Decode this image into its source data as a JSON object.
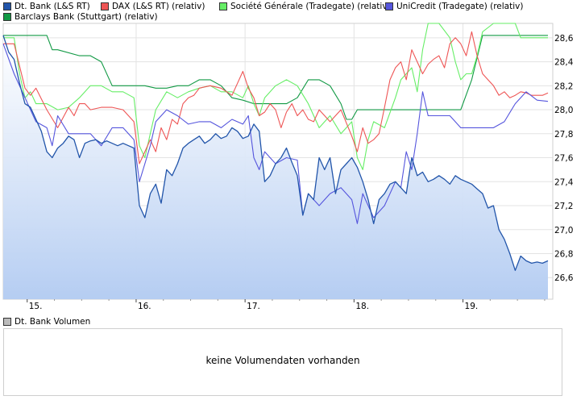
{
  "legend": [
    {
      "label": "Dt. Bank (L&S RT)",
      "color": "#2255aa"
    },
    {
      "label": "DAX (L&S RT) (relativ)",
      "color": "#ee5555"
    },
    {
      "label": "Société Générale (Tradegate) (relativ)",
      "color": "#66ee66"
    },
    {
      "label": "UniCredit (Tradegate) (relativ)",
      "color": "#5555dd"
    },
    {
      "label": "Barclays Bank (Stuttgart) (relativ)",
      "color": "#119944"
    }
  ],
  "volume": {
    "legend_label": "Dt. Bank Volumen",
    "legend_color": "#bbbbbb",
    "message": "keine Volumendaten vorhanden"
  },
  "chart_data": {
    "type": "line",
    "x_tick_labels": [
      "15.",
      "16.",
      "17.",
      "18.",
      "19."
    ],
    "y_tick_labels": [
      "26,6",
      "26,8",
      "27,0",
      "27,2",
      "27,4",
      "27,6",
      "27,8",
      "28,0",
      "28,2",
      "28,4",
      "28,6"
    ],
    "ylim": [
      26.42,
      28.72
    ],
    "xlim": [
      0,
      100
    ],
    "grid": true,
    "series": [
      {
        "name": "Dt. Bank (L&S RT)",
        "color": "#2255aa",
        "fill": true,
        "x": [
          0,
          1,
          2,
          3,
          4,
          5,
          6,
          7,
          8,
          9,
          10,
          11,
          12,
          13,
          14,
          15,
          16,
          17,
          18,
          19,
          20,
          21,
          22,
          23,
          24,
          25,
          26,
          27,
          28,
          29,
          30,
          31,
          32,
          33,
          34,
          35,
          36,
          37,
          38,
          39,
          40,
          41,
          42,
          43,
          44,
          45,
          46,
          47,
          48,
          49,
          50,
          51,
          52,
          53,
          54,
          55,
          56,
          57,
          58,
          59,
          60,
          61,
          62,
          63,
          64,
          65,
          66,
          67,
          68,
          69,
          70,
          71,
          72,
          73,
          74,
          75,
          76,
          77,
          78,
          79,
          80,
          81,
          82,
          83,
          84,
          85,
          86,
          87,
          88,
          89,
          90,
          91,
          92,
          93,
          94,
          95,
          96,
          97,
          98,
          99,
          100
        ],
        "values": [
          28.62,
          28.48,
          28.42,
          28.22,
          28.05,
          28.02,
          27.92,
          27.82,
          27.65,
          27.6,
          27.68,
          27.72,
          27.78,
          27.75,
          27.6,
          27.72,
          27.74,
          27.75,
          27.72,
          27.74,
          27.72,
          27.7,
          27.72,
          27.7,
          27.68,
          27.2,
          27.1,
          27.3,
          27.38,
          27.22,
          27.5,
          27.45,
          27.55,
          27.68,
          27.72,
          27.75,
          27.78,
          27.72,
          27.75,
          27.8,
          27.76,
          27.78,
          27.85,
          27.82,
          27.76,
          27.78,
          27.88,
          27.82,
          27.4,
          27.45,
          27.55,
          27.6,
          27.68,
          27.56,
          27.45,
          27.12,
          27.3,
          27.25,
          27.6,
          27.5,
          27.6,
          27.3,
          27.5,
          27.55,
          27.6,
          27.52,
          27.4,
          27.25,
          27.05,
          27.25,
          27.3,
          27.38,
          27.4,
          27.35,
          27.3,
          27.6,
          27.45,
          27.48,
          27.4,
          27.42,
          27.45,
          27.42,
          27.38,
          27.45,
          27.42,
          27.4,
          27.38,
          27.34,
          27.3,
          27.18,
          27.2,
          27.0,
          26.92,
          26.8,
          26.66,
          26.78,
          26.74,
          26.72,
          26.73,
          26.72,
          26.74
        ]
      },
      {
        "name": "DAX (L&S RT) (relativ)",
        "color": "#ee5555",
        "fill": false,
        "x": [
          0,
          2,
          4,
          5,
          6,
          8,
          10,
          12,
          13,
          14,
          15,
          16,
          18,
          20,
          22,
          24,
          25,
          26,
          27,
          28,
          29,
          30,
          31,
          32,
          33,
          34,
          35,
          36,
          38,
          40,
          42,
          43,
          44,
          45,
          46,
          47,
          48,
          49,
          50,
          51,
          52,
          53,
          54,
          55,
          56,
          57,
          58,
          60,
          62,
          64,
          65,
          66,
          67,
          68,
          69,
          70,
          71,
          72,
          73,
          74,
          75,
          76,
          77,
          78,
          79,
          80,
          81,
          82,
          83,
          84,
          85,
          86,
          87,
          88,
          89,
          90,
          91,
          92,
          93,
          94,
          95,
          96,
          97,
          98,
          99,
          100
        ],
        "values": [
          28.55,
          28.55,
          28.18,
          28.12,
          28.18,
          28.0,
          27.85,
          28.02,
          27.95,
          28.05,
          28.05,
          28.0,
          28.02,
          28.02,
          28.0,
          27.9,
          27.55,
          27.65,
          27.75,
          27.65,
          27.85,
          27.75,
          27.92,
          27.88,
          28.05,
          28.1,
          28.12,
          28.18,
          28.2,
          28.18,
          28.12,
          28.22,
          28.32,
          28.18,
          28.1,
          27.95,
          27.98,
          28.05,
          28.0,
          27.85,
          27.98,
          28.05,
          27.95,
          28.0,
          27.92,
          27.9,
          28.0,
          27.9,
          28.0,
          27.78,
          27.65,
          27.85,
          27.72,
          27.75,
          27.8,
          28.02,
          28.25,
          28.35,
          28.4,
          28.25,
          28.5,
          28.4,
          28.3,
          28.38,
          28.42,
          28.45,
          28.35,
          28.55,
          28.6,
          28.55,
          28.45,
          28.65,
          28.45,
          28.3,
          28.25,
          28.2,
          28.12,
          28.15,
          28.1,
          28.12,
          28.15,
          28.14,
          28.12,
          28.12,
          28.12,
          28.14
        ]
      },
      {
        "name": "Société Générale (Tradegate) (relativ)",
        "color": "#66ee66",
        "fill": false,
        "x": [
          0,
          2,
          3,
          4,
          5,
          6,
          8,
          10,
          12,
          14,
          16,
          18,
          20,
          22,
          24,
          25,
          26,
          27,
          28,
          30,
          32,
          34,
          36,
          38,
          40,
          42,
          44,
          45,
          46,
          47,
          48,
          50,
          52,
          54,
          56,
          58,
          60,
          62,
          64,
          65,
          66,
          67,
          68,
          70,
          72,
          73,
          74,
          75,
          76,
          77,
          78,
          80,
          82,
          83,
          84,
          85,
          86,
          87,
          88,
          90,
          92,
          94,
          95,
          96,
          98,
          100
        ],
        "values": [
          28.6,
          28.6,
          28.3,
          28.1,
          28.15,
          28.05,
          28.05,
          28.0,
          28.02,
          28.1,
          28.2,
          28.2,
          28.15,
          28.15,
          28.1,
          27.7,
          27.6,
          27.8,
          28.0,
          28.15,
          28.1,
          28.15,
          28.18,
          28.2,
          28.15,
          28.15,
          28.1,
          28.2,
          28.05,
          27.95,
          28.1,
          28.2,
          28.25,
          28.2,
          28.05,
          27.85,
          27.95,
          27.8,
          27.9,
          27.6,
          27.5,
          27.75,
          27.9,
          27.85,
          28.1,
          28.25,
          28.3,
          28.35,
          28.15,
          28.5,
          28.72,
          28.72,
          28.6,
          28.4,
          28.25,
          28.3,
          28.3,
          28.45,
          28.65,
          28.72,
          28.72,
          28.72,
          28.6,
          28.6,
          28.6,
          28.6
        ]
      },
      {
        "name": "UniCredit (Tradegate) (relativ)",
        "color": "#5555dd",
        "fill": false,
        "x": [
          0,
          2,
          4,
          6,
          8,
          9,
          10,
          12,
          14,
          16,
          18,
          20,
          22,
          24,
          25,
          26,
          27,
          28,
          30,
          32,
          34,
          36,
          38,
          40,
          42,
          44,
          45,
          46,
          47,
          48,
          50,
          52,
          54,
          55,
          56,
          58,
          60,
          62,
          64,
          65,
          66,
          68,
          70,
          72,
          73,
          74,
          75,
          76,
          77,
          78,
          80,
          82,
          84,
          86,
          88,
          90,
          92,
          94,
          96,
          98,
          100
        ],
        "values": [
          28.55,
          28.3,
          28.1,
          27.9,
          27.85,
          27.7,
          27.95,
          27.8,
          27.8,
          27.8,
          27.7,
          27.85,
          27.85,
          27.75,
          27.4,
          27.55,
          27.7,
          27.9,
          28.0,
          27.95,
          27.88,
          27.9,
          27.9,
          27.85,
          27.92,
          27.88,
          27.95,
          27.6,
          27.5,
          27.65,
          27.55,
          27.6,
          27.58,
          27.12,
          27.3,
          27.2,
          27.3,
          27.35,
          27.25,
          27.05,
          27.3,
          27.1,
          27.2,
          27.4,
          27.35,
          27.65,
          27.5,
          27.8,
          28.15,
          27.95,
          27.95,
          27.95,
          27.85,
          27.85,
          27.85,
          27.85,
          27.9,
          28.05,
          28.15,
          28.08,
          28.07
        ]
      },
      {
        "name": "Barclays Bank (Stuttgart) (relativ)",
        "color": "#119944",
        "fill": false,
        "x": [
          0,
          3,
          4,
          8,
          9,
          10,
          14,
          16,
          18,
          20,
          22,
          24,
          25,
          26,
          28,
          30,
          32,
          34,
          36,
          38,
          40,
          42,
          44,
          46,
          48,
          50,
          52,
          54,
          56,
          58,
          60,
          62,
          63,
          64,
          65,
          66,
          67,
          70,
          72,
          74,
          76,
          78,
          80,
          82,
          84,
          86,
          88,
          90,
          92,
          94,
          96,
          98,
          100
        ],
        "values": [
          28.62,
          28.62,
          28.62,
          28.62,
          28.5,
          28.5,
          28.45,
          28.45,
          28.4,
          28.2,
          28.2,
          28.2,
          28.2,
          28.2,
          28.18,
          28.18,
          28.2,
          28.2,
          28.25,
          28.25,
          28.2,
          28.1,
          28.08,
          28.05,
          28.05,
          28.05,
          28.05,
          28.1,
          28.25,
          28.25,
          28.2,
          28.05,
          27.92,
          27.92,
          28.0,
          28.0,
          28.0,
          28.0,
          28.0,
          28.0,
          28.0,
          28.0,
          28.0,
          28.0,
          28.0,
          28.25,
          28.62,
          28.62,
          28.62,
          28.62,
          28.62,
          28.62,
          28.62
        ]
      }
    ]
  }
}
